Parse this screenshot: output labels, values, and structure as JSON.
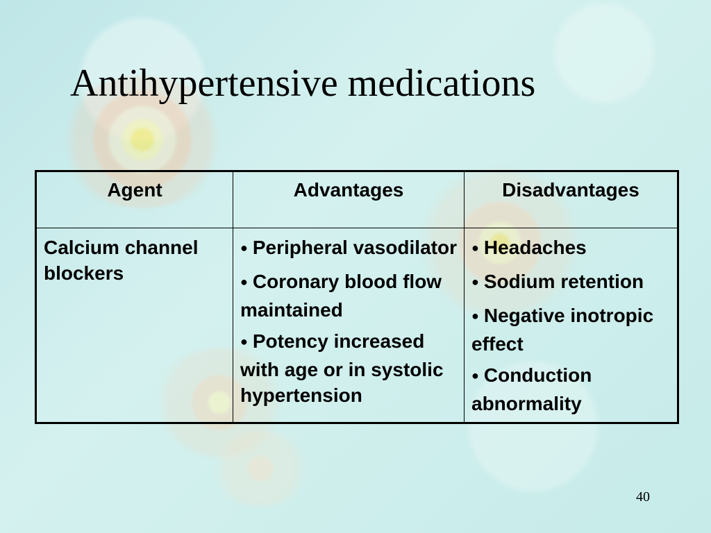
{
  "slide": {
    "title": "Antihypertensive medications",
    "page_number": "40"
  },
  "table": {
    "headers": [
      "Agent",
      "Advantages",
      "Disadvantages"
    ],
    "row": {
      "agent": "Calcium channel blockers",
      "advantages": [
        "Peripheral vasodilator",
        "Coronary blood flow maintained",
        "Potency increased with age or in systolic hypertension"
      ],
      "disadvantages": [
        "Headaches",
        "Sodium retention",
        "Negative inotropic effect",
        "Conduction abnormality"
      ]
    },
    "bullet_symbol": "●"
  },
  "background": {
    "primary_color": "#c9ecec",
    "decoration": "faded-flower-pattern"
  }
}
